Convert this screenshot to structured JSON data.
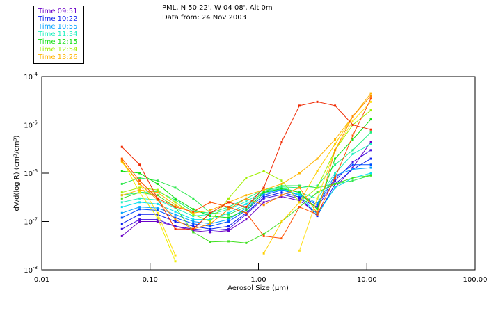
{
  "header": {
    "location": "PML, N 50 22', W 04 08', Alt 0m",
    "date_line": "Data from: 24 Nov 2003"
  },
  "legend": [
    {
      "label": "Time 09:51",
      "color": "#6a00c8"
    },
    {
      "label": "Time 10:22",
      "color": "#0a1ef0"
    },
    {
      "label": "Time 10:55",
      "color": "#00a0ff"
    },
    {
      "label": "Time 11:34",
      "color": "#20f0c0"
    },
    {
      "label": "Time 12:15",
      "color": "#10e010"
    },
    {
      "label": "Time 12:54",
      "color": "#a0f000"
    },
    {
      "label": "Time 13:26",
      "color": "#ffb400"
    }
  ],
  "chart_data": {
    "type": "line",
    "title": "PML, N 50 22', W 04 08', Alt 0m",
    "xlabel": "Aerosol Size (µm)",
    "ylabel": "dV/d(log R) (cm³/cm³)",
    "xscale": "log",
    "yscale": "log",
    "xlim": [
      0.01,
      100
    ],
    "ylim": [
      1e-08,
      0.0001
    ],
    "xticks": [
      "0.01",
      "0.10",
      "1.00",
      "10.00",
      "100.00"
    ],
    "yticks": [
      {
        "base": "10",
        "exp": "-4"
      },
      {
        "base": "10",
        "exp": "-5"
      },
      {
        "base": "10",
        "exp": "-6"
      },
      {
        "base": "10",
        "exp": "-7"
      },
      {
        "base": "10",
        "exp": "-8"
      }
    ],
    "legend_position": "top-left-outside",
    "grid": false,
    "x": [
      0.055,
      0.08,
      0.117,
      0.171,
      0.25,
      0.36,
      0.53,
      0.77,
      1.12,
      1.64,
      2.39,
      3.49,
      5.09,
      7.42,
      10.9
    ],
    "series": [
      {
        "name": "s1",
        "color": "#6a00c8",
        "values": [
          5e-08,
          1e-07,
          1e-07,
          8e-08,
          6.5e-08,
          6e-08,
          6.5e-08,
          1.1e-07,
          2.5e-07,
          3.3e-07,
          2.7e-07,
          1.5e-07,
          5e-07,
          1.3e-06,
          4.5e-06
        ]
      },
      {
        "name": "s2",
        "color": "#4010e0",
        "values": [
          7e-08,
          1.1e-07,
          1.1e-07,
          8e-08,
          7e-08,
          6.5e-08,
          7e-08,
          1.4e-07,
          3e-07,
          3.6e-07,
          3e-07,
          2e-07,
          7e-07,
          1.7e-06,
          3e-06
        ]
      },
      {
        "name": "s3",
        "color": "#0a1ef0",
        "values": [
          9e-08,
          1.4e-07,
          1.4e-07,
          1e-07,
          8e-08,
          7e-08,
          8e-08,
          1.5e-07,
          3.2e-07,
          4e-07,
          3.2e-07,
          1.3e-07,
          6e-07,
          1.2e-06,
          2e-06
        ]
      },
      {
        "name": "s4",
        "color": "#0050ff",
        "values": [
          1.2e-07,
          1.8e-07,
          1.7e-07,
          1.2e-07,
          9e-08,
          8e-08,
          1e-07,
          1.7e-07,
          3.5e-07,
          4.5e-07,
          3.5e-07,
          2.2e-07,
          8e-07,
          1.5e-06,
          1.5e-06
        ]
      },
      {
        "name": "s5",
        "color": "#00a0ff",
        "values": [
          1.5e-07,
          2e-07,
          1.9e-07,
          1.4e-07,
          1e-07,
          9e-08,
          1.1e-07,
          1.9e-07,
          3.8e-07,
          4.6e-07,
          3.6e-07,
          2.4e-07,
          9e-07,
          1.2e-06,
          1.3e-06
        ]
      },
      {
        "name": "s6",
        "color": "#00e0f0",
        "values": [
          2e-07,
          2.5e-07,
          2.3e-07,
          1.6e-07,
          1.1e-07,
          1.1e-07,
          1.5e-07,
          2.3e-07,
          4e-07,
          4.8e-07,
          3.5e-07,
          1.4e-07,
          5e-07,
          8e-07,
          1e-06
        ]
      },
      {
        "name": "s7",
        "color": "#20f0c0",
        "values": [
          2.5e-07,
          3e-07,
          2.8e-07,
          1.9e-07,
          1.3e-07,
          1.4e-07,
          1.8e-07,
          2.6e-07,
          4.2e-07,
          5e-07,
          4e-07,
          3e-07,
          1e-06,
          2.5e-06,
          4e-06
        ]
      },
      {
        "name": "s8",
        "color": "#20f080",
        "values": [
          3.5e-07,
          4e-07,
          4.2e-07,
          2.8e-07,
          1.6e-07,
          1.5e-07,
          2e-07,
          3e-07,
          4.5e-07,
          5.2e-07,
          5e-07,
          5.5e-07,
          1.5e-06,
          3e-06,
          7e-06
        ]
      },
      {
        "name": "s9",
        "color": "#30e850",
        "values": [
          6e-07,
          8e-07,
          7e-07,
          5e-07,
          3e-07,
          1.5e-07,
          1.4e-07,
          2e-07,
          4.2e-07,
          5.5e-07,
          5.5e-07,
          5e-07,
          6e-07,
          7e-07,
          9e-07
        ]
      },
      {
        "name": "s10",
        "color": "#10e010",
        "values": [
          1.1e-06,
          1e-06,
          6e-07,
          3e-07,
          1.8e-07,
          1.3e-07,
          1.2e-07,
          1.7e-07,
          4e-07,
          4.8e-07,
          4e-07,
          1.8e-07,
          2e-06,
          5e-06,
          1.3e-05
        ]
      },
      {
        "name": "s11",
        "color": "#40e020",
        "values": [
          3e-07,
          4e-07,
          3.5e-07,
          2e-07,
          6e-08,
          3.8e-08,
          3.9e-08,
          3.6e-08,
          5.5e-08,
          1e-07,
          2e-07,
          4e-07,
          6e-07,
          8e-07,
          9e-07
        ]
      },
      {
        "name": "s12",
        "color": "#a0f000",
        "values": [
          4e-07,
          5e-07,
          4.5e-07,
          2.5e-07,
          1.4e-07,
          1e-07,
          3e-07,
          8e-07,
          1.1e-06,
          7e-07,
          2.5e-07,
          5e-07,
          3e-06,
          1e-05,
          2e-05
        ]
      },
      {
        "name": "s13",
        "color": "#f0f000",
        "values": [
          1.9e-06,
          4e-07,
          1.2e-07,
          1.5e-08,
          null,
          null,
          null,
          null,
          null,
          null,
          null,
          null,
          null,
          null,
          null
        ]
      },
      {
        "name": "s14",
        "color": "#ffe000",
        "values": [
          1.7e-06,
          6e-07,
          1.5e-07,
          2e-08,
          null,
          null,
          null,
          null,
          null,
          null,
          null,
          null,
          null,
          null,
          null
        ]
      },
      {
        "name": "s15",
        "color": "#ffd000",
        "values": [
          null,
          null,
          null,
          null,
          null,
          null,
          null,
          null,
          2.2e-08,
          1e-07,
          2.5e-07,
          1.1e-06,
          4e-06,
          1.5e-05,
          4e-05
        ]
      },
      {
        "name": "s16",
        "color": "#ffe020",
        "values": [
          null,
          null,
          null,
          null,
          null,
          null,
          null,
          null,
          null,
          null,
          2.5e-08,
          3e-07,
          3e-06,
          1.2e-05,
          3e-05
        ]
      },
      {
        "name": "s17",
        "color": "#ffb400",
        "values": [
          3.5e-07,
          4.5e-07,
          4e-07,
          2.2e-07,
          1.5e-07,
          1.7e-07,
          2.5e-07,
          3.5e-07,
          4.5e-07,
          6e-07,
          1e-06,
          2e-06,
          5e-06,
          1.5e-05,
          4.5e-05
        ]
      },
      {
        "name": "s18",
        "color": "#ff8c00",
        "values": [
          1.8e-06,
          6e-07,
          2.8e-07,
          1.1e-07,
          7e-08,
          9e-08,
          1.8e-07,
          3e-07,
          2.2e-07,
          3.5e-07,
          5e-07,
          1.5e-07,
          3e-06,
          1.5e-05,
          4e-05
        ]
      },
      {
        "name": "s19",
        "color": "#ff5000",
        "values": [
          2e-06,
          7e-07,
          3e-07,
          2e-07,
          1.6e-07,
          2.5e-07,
          2e-07,
          1.5e-07,
          5e-08,
          4.5e-08,
          2e-07,
          1.4e-07,
          8e-07,
          6e-06,
          3.5e-05
        ]
      },
      {
        "name": "s20",
        "color": "#f02800",
        "values": [
          3.5e-06,
          1.5e-06,
          3e-07,
          7e-08,
          7e-08,
          1.5e-07,
          2.5e-07,
          2e-07,
          5e-07,
          4.5e-06,
          2.5e-05,
          3e-05,
          2.5e-05,
          1e-05,
          8e-06
        ]
      }
    ]
  }
}
